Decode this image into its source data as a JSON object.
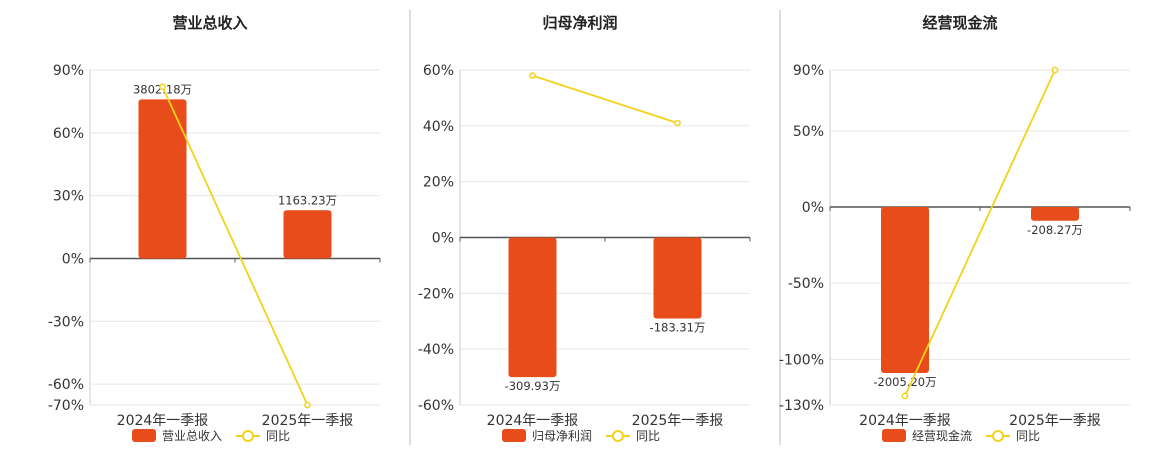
{
  "colors": {
    "bar": "#e84c1a",
    "line": "#f2d21b",
    "grid": "#e6e6e6",
    "axis": "#555555",
    "divider": "#bbbbbb"
  },
  "chart_data": [
    {
      "type": "bar",
      "title": "营业总收入",
      "categories": [
        "2024年一季报",
        "2025年一季报"
      ],
      "series": [
        {
          "name": "营业总收入",
          "type": "bar",
          "values": [
            76,
            23
          ],
          "labels": [
            "3802.18万",
            "1163.23万"
          ]
        },
        {
          "name": "同比",
          "type": "line",
          "values": [
            82,
            -70
          ]
        }
      ],
      "yticks": [
        90,
        60,
        30,
        0,
        -30,
        -60,
        -70
      ],
      "ytick_labels": [
        "90%",
        "60%",
        "30%",
        "0%",
        "-30%",
        "-60%",
        "-70%"
      ],
      "ylim": [
        -70,
        90
      ],
      "legend": [
        "营业总收入",
        "同比"
      ],
      "legend_position": "bottom"
    },
    {
      "type": "bar",
      "title": "归母净利润",
      "categories": [
        "2024年一季报",
        "2025年一季报"
      ],
      "series": [
        {
          "name": "归母净利润",
          "type": "bar",
          "values": [
            -50,
            -29
          ],
          "labels": [
            "-309.93万",
            "-183.31万"
          ]
        },
        {
          "name": "同比",
          "type": "line",
          "values": [
            58,
            41
          ]
        }
      ],
      "yticks": [
        60,
        40,
        20,
        0,
        -20,
        -40,
        -60
      ],
      "ytick_labels": [
        "60%",
        "40%",
        "20%",
        "0%",
        "-20%",
        "-40%",
        "-60%"
      ],
      "ylim": [
        -60,
        60
      ],
      "legend": [
        "归母净利润",
        "同比"
      ],
      "legend_position": "bottom"
    },
    {
      "type": "bar",
      "title": "经营现金流",
      "categories": [
        "2024年一季报",
        "2025年一季报"
      ],
      "series": [
        {
          "name": "经营现金流",
          "type": "bar",
          "values": [
            -109,
            -9
          ],
          "labels": [
            "-2005.20万",
            "-208.27万"
          ]
        },
        {
          "name": "同比",
          "type": "line",
          "values": [
            -124,
            90
          ]
        }
      ],
      "yticks": [
        90,
        50,
        0,
        -50,
        -100,
        -130
      ],
      "ytick_labels": [
        "90%",
        "50%",
        "0%",
        "-50%",
        "-100%",
        "-130%"
      ],
      "ylim": [
        -130,
        90
      ],
      "legend": [
        "经营现金流",
        "同比"
      ],
      "legend_position": "bottom"
    }
  ]
}
